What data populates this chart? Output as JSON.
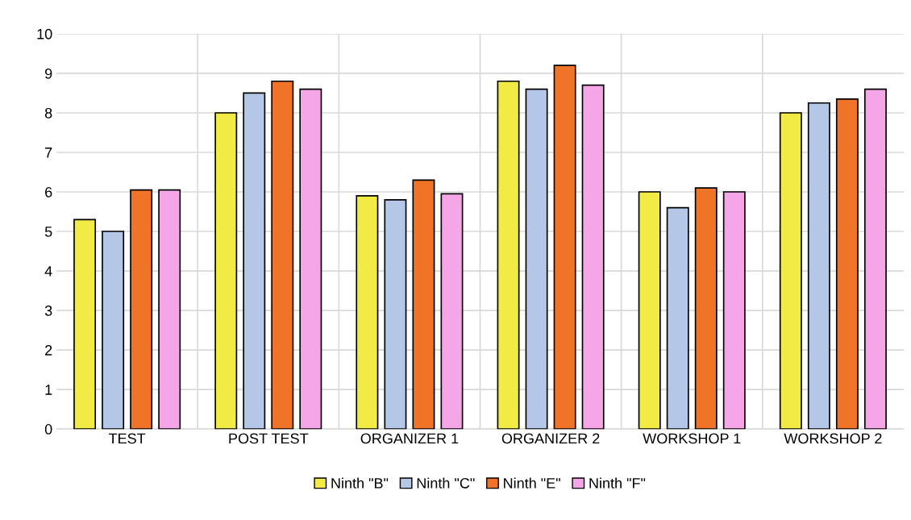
{
  "chart_data": {
    "type": "bar",
    "categories": [
      "TEST",
      "POST TEST",
      "ORGANIZER 1",
      "ORGANIZER 2",
      "WORKSHOP 1",
      "WORKSHOP 2"
    ],
    "series": [
      {
        "name": "Ninth \"B\"",
        "color": "#f2ea45",
        "values": [
          5.3,
          8.0,
          5.9,
          8.8,
          6.0,
          8.0
        ]
      },
      {
        "name": "Ninth \"C\"",
        "color": "#b4c7e7",
        "values": [
          5.0,
          8.5,
          5.8,
          8.6,
          5.6,
          8.25
        ]
      },
      {
        "name": "Ninth \"E\"",
        "color": "#f07428",
        "values": [
          6.05,
          8.8,
          6.3,
          9.2,
          6.1,
          8.35
        ]
      },
      {
        "name": "Ninth \"F\"",
        "color": "#f4a6e6",
        "values": [
          6.05,
          8.6,
          5.95,
          8.7,
          6.0,
          8.6
        ]
      }
    ],
    "ylim": [
      0,
      10
    ],
    "yticks": [
      0,
      1,
      2,
      3,
      4,
      5,
      6,
      7,
      8,
      9,
      10
    ],
    "grid": "y",
    "legend": "bottom"
  }
}
